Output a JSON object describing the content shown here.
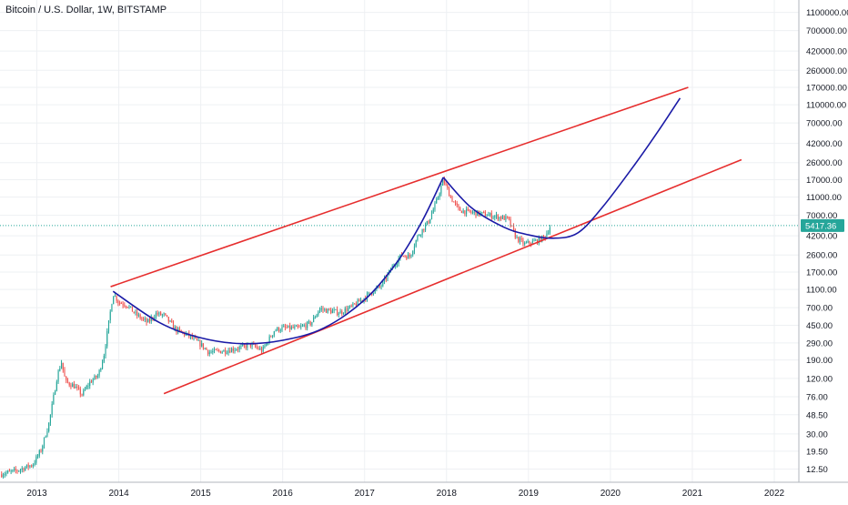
{
  "chart_title": "Bitcoin / U.S. Dollar, 1W, BITSTAMP",
  "colors": {
    "up": "#26a69a",
    "down": "#ef5350",
    "trendline": "#e62e2e",
    "curve": "#1a1aa6",
    "grid": "#eef0f3",
    "price_line": "#26a69a",
    "axis_text": "#131722",
    "price_badge": "#26a69a"
  },
  "chart_data": {
    "type": "candlestick",
    "title": "Bitcoin / U.S. Dollar, 1W, BITSTAMP",
    "y_scale": "log",
    "ylim": [
      9,
      1500000
    ],
    "xlim": [
      2012.55,
      2022.3
    ],
    "x_ticks": [
      "2013",
      "2014",
      "2015",
      "2016",
      "2017",
      "2018",
      "2019",
      "2020",
      "2021",
      "2022"
    ],
    "y_ticks": [
      "1100000.00",
      "700000.00",
      "420000.00",
      "260000.00",
      "170000.00",
      "110000.00",
      "70000.00",
      "42000.00",
      "26000.00",
      "17000.00",
      "11000.00",
      "7000.00",
      "4200.00",
      "2600.00",
      "1700.00",
      "1100.00",
      "700.00",
      "450.00",
      "290.00",
      "190.00",
      "120.00",
      "76.00",
      "48.50",
      "30.00",
      "19.50",
      "12.50"
    ],
    "current_price": "5417.36",
    "price_path": [
      [
        2012.55,
        11
      ],
      [
        2012.75,
        12
      ],
      [
        2012.95,
        14
      ],
      [
        2013.05,
        20
      ],
      [
        2013.15,
        40
      ],
      [
        2013.25,
        130
      ],
      [
        2013.3,
        180
      ],
      [
        2013.35,
        110
      ],
      [
        2013.45,
        100
      ],
      [
        2013.55,
        80
      ],
      [
        2013.65,
        110
      ],
      [
        2013.75,
        130
      ],
      [
        2013.82,
        220
      ],
      [
        2013.88,
        500
      ],
      [
        2013.93,
        1000
      ],
      [
        2014.0,
        800
      ],
      [
        2014.1,
        750
      ],
      [
        2014.2,
        600
      ],
      [
        2014.35,
        480
      ],
      [
        2014.45,
        600
      ],
      [
        2014.55,
        580
      ],
      [
        2014.7,
        400
      ],
      [
        2014.85,
        350
      ],
      [
        2015.0,
        280
      ],
      [
        2015.1,
        230
      ],
      [
        2015.3,
        240
      ],
      [
        2015.5,
        260
      ],
      [
        2015.6,
        280
      ],
      [
        2015.75,
        240
      ],
      [
        2015.9,
        400
      ],
      [
        2016.0,
        420
      ],
      [
        2016.2,
        420
      ],
      [
        2016.35,
        480
      ],
      [
        2016.45,
        680
      ],
      [
        2016.55,
        650
      ],
      [
        2016.7,
        620
      ],
      [
        2016.85,
        720
      ],
      [
        2017.0,
        900
      ],
      [
        2017.1,
        1050
      ],
      [
        2017.2,
        1200
      ],
      [
        2017.35,
        2000
      ],
      [
        2017.45,
        2600
      ],
      [
        2017.55,
        2500
      ],
      [
        2017.65,
        4200
      ],
      [
        2017.78,
        6000
      ],
      [
        2017.88,
        10000
      ],
      [
        2017.96,
        17000
      ],
      [
        2018.05,
        11000
      ],
      [
        2018.15,
        8000
      ],
      [
        2018.3,
        7500
      ],
      [
        2018.45,
        7200
      ],
      [
        2018.6,
        6800
      ],
      [
        2018.75,
        6400
      ],
      [
        2018.85,
        4000
      ],
      [
        2018.95,
        3400
      ],
      [
        2019.1,
        3700
      ],
      [
        2019.2,
        4100
      ],
      [
        2019.27,
        5417
      ]
    ],
    "trendlines": [
      {
        "from": [
          2013.9,
          1180
        ],
        "to": [
          2020.95,
          170000
        ]
      },
      {
        "from": [
          2014.55,
          82
        ],
        "to": [
          2021.6,
          28000
        ]
      }
    ],
    "curves": [
      {
        "points": [
          [
            2013.93,
            1050
          ],
          [
            2014.5,
            480
          ],
          [
            2015.0,
            330
          ],
          [
            2015.5,
            285
          ],
          [
            2016.0,
            310
          ],
          [
            2016.5,
            420
          ],
          [
            2017.0,
            850
          ],
          [
            2017.4,
            2200
          ],
          [
            2017.7,
            6000
          ],
          [
            2017.96,
            18000
          ]
        ]
      },
      {
        "points": [
          [
            2017.96,
            18000
          ],
          [
            2018.3,
            8500
          ],
          [
            2018.7,
            5200
          ],
          [
            2019.0,
            4300
          ],
          [
            2019.3,
            3950
          ],
          [
            2019.6,
            4500
          ],
          [
            2019.9,
            8500
          ],
          [
            2020.3,
            25000
          ],
          [
            2020.6,
            60000
          ],
          [
            2020.85,
            130000
          ]
        ]
      }
    ]
  }
}
